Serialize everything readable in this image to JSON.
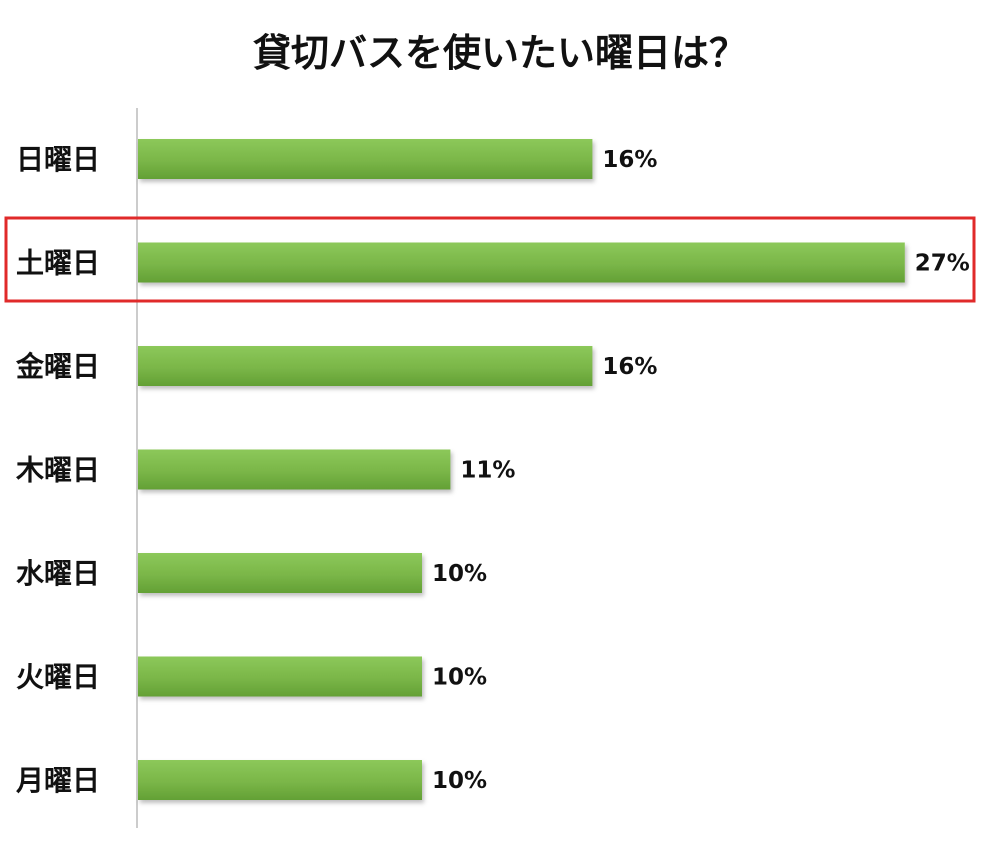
{
  "chart_data": {
    "type": "bar",
    "orientation": "horizontal",
    "title": "貸切バスを使いたい曜日は？",
    "categories": [
      "日曜日",
      "土曜日",
      "金曜日",
      "木曜日",
      "水曜日",
      "火曜日",
      "月曜日"
    ],
    "values": [
      16,
      27,
      16,
      11,
      10,
      10,
      10
    ],
    "value_labels": [
      "16%",
      "27%",
      "16%",
      "11%",
      "10%",
      "10%",
      "10%"
    ],
    "unit": "%",
    "highlighted_category": "土曜日",
    "grid": false,
    "legend": "none"
  },
  "colors": {
    "bar": "#7ab648",
    "bar_light": "#8cc85a",
    "bar_dark": "#63a035",
    "axis": "#bbbbbb",
    "highlight": "#e02a2a",
    "text": "#111111"
  }
}
